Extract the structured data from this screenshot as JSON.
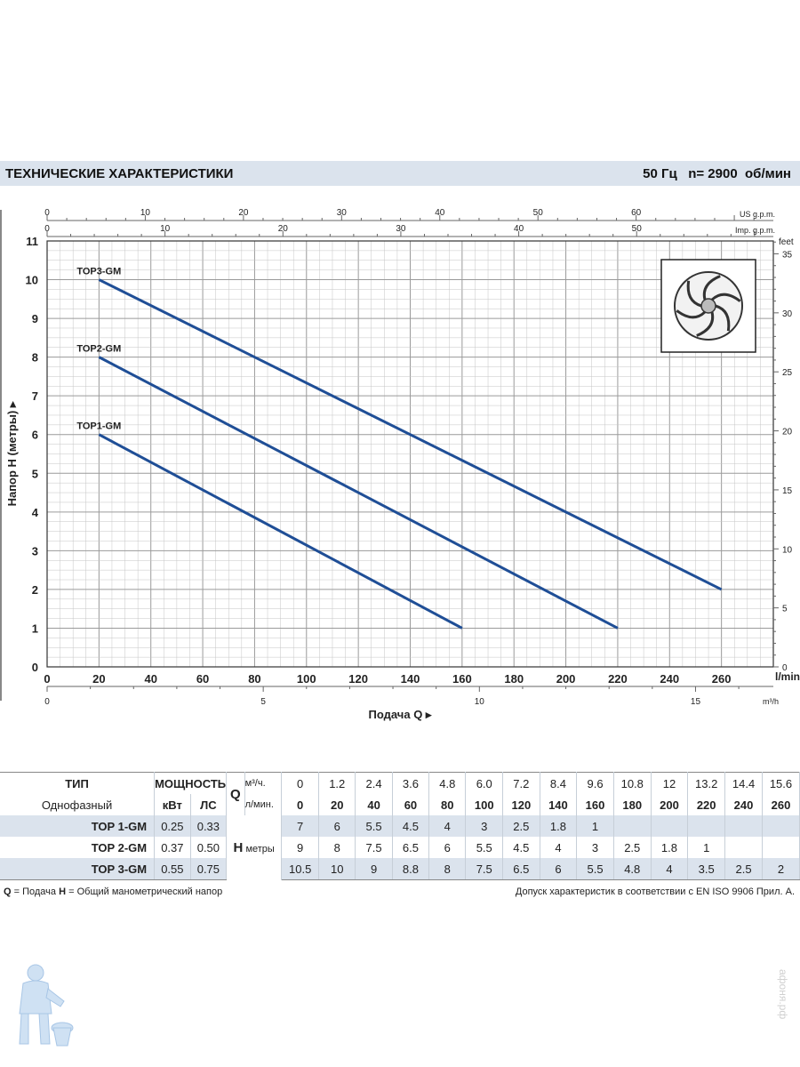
{
  "header": {
    "title": "ТЕХНИЧЕСКИЕ ХАРАКТЕРИСТИКИ",
    "frequency": "50 Гц",
    "speed": "n= 2900  об/мин"
  },
  "chart_data": {
    "type": "line",
    "ylabel": "Напор H  (метры)",
    "xlabel": "Подача Q",
    "x_unit": "l/min",
    "m3h_unit": "m³/h",
    "usgpm_unit": "US g.p.m.",
    "impgpm_unit": "Imp. g.p.m.",
    "feet_unit": "feet",
    "xlim": [
      0,
      280
    ],
    "ylim": [
      0,
      11
    ],
    "x_ticks": [
      0,
      20,
      40,
      60,
      80,
      100,
      120,
      140,
      160,
      180,
      200,
      220,
      240,
      260
    ],
    "y_ticks": [
      0,
      1,
      2,
      3,
      4,
      5,
      6,
      7,
      8,
      9,
      10,
      11
    ],
    "m3h_ticks": [
      0,
      5,
      10,
      15
    ],
    "usgpm_ticks": [
      0,
      10,
      20,
      30,
      40,
      50,
      60
    ],
    "impgpm_ticks": [
      0,
      10,
      20,
      30,
      40,
      50
    ],
    "feet_ticks": [
      0,
      5,
      10,
      15,
      20,
      25,
      30,
      35
    ],
    "grid": true,
    "series": [
      {
        "name": "TOP1-GM",
        "x": [
          20,
          160
        ],
        "y": [
          6,
          1
        ]
      },
      {
        "name": "TOP2-GM",
        "x": [
          20,
          220
        ],
        "y": [
          8,
          1
        ]
      },
      {
        "name": "TOP3-GM",
        "x": [
          20,
          260
        ],
        "y": [
          10,
          2
        ]
      }
    ]
  },
  "table": {
    "type_label": "ТИП",
    "power_label": "МОЩНОСТЬ",
    "phase_label": "Однофазный",
    "kw_label": "кВт",
    "hp_label": "ЛС",
    "q_symbol": "Q",
    "m3h_label": "м³/ч.",
    "lmin_label": "л/мин.",
    "h_symbol": "H",
    "h_unit": "метры",
    "m3h_values": [
      "0",
      "1.2",
      "2.4",
      "3.6",
      "4.8",
      "6.0",
      "7.2",
      "8.4",
      "9.6",
      "10.8",
      "12",
      "13.2",
      "14.4",
      "15.6"
    ],
    "lmin_values": [
      "0",
      "20",
      "40",
      "60",
      "80",
      "100",
      "120",
      "140",
      "160",
      "180",
      "200",
      "220",
      "240",
      "260"
    ],
    "rows": [
      {
        "model": "TOP 1-GM",
        "kw": "0.25",
        "hp": "0.33",
        "h": [
          "7",
          "6",
          "5.5",
          "4.5",
          "4",
          "3",
          "2.5",
          "1.8",
          "1",
          "",
          "",
          "",
          "",
          ""
        ]
      },
      {
        "model": "TOP 2-GM",
        "kw": "0.37",
        "hp": "0.50",
        "h": [
          "9",
          "8",
          "7.5",
          "6.5",
          "6",
          "5.5",
          "4.5",
          "4",
          "3",
          "2.5",
          "1.8",
          "1",
          "",
          ""
        ]
      },
      {
        "model": "TOP 3-GM",
        "kw": "0.55",
        "hp": "0.75",
        "h": [
          "10.5",
          "10",
          "9",
          "8.8",
          "8",
          "7.5",
          "6.5",
          "6",
          "5.5",
          "4.8",
          "4",
          "3.5",
          "2.5",
          "2"
        ]
      }
    ]
  },
  "footer": {
    "left_q": "Q",
    "left_q_text": " = Подача   ",
    "left_h": "H",
    "left_h_text": " = Общий манометрический напор",
    "right": "Допуск характеристик в соответствии с EN ISO 9906 Прил. А."
  },
  "watermark": "афоня.рф",
  "colors": {
    "curve": "#1f4e96",
    "band": "#dbe3ed",
    "grid": "#c5c5c5"
  }
}
